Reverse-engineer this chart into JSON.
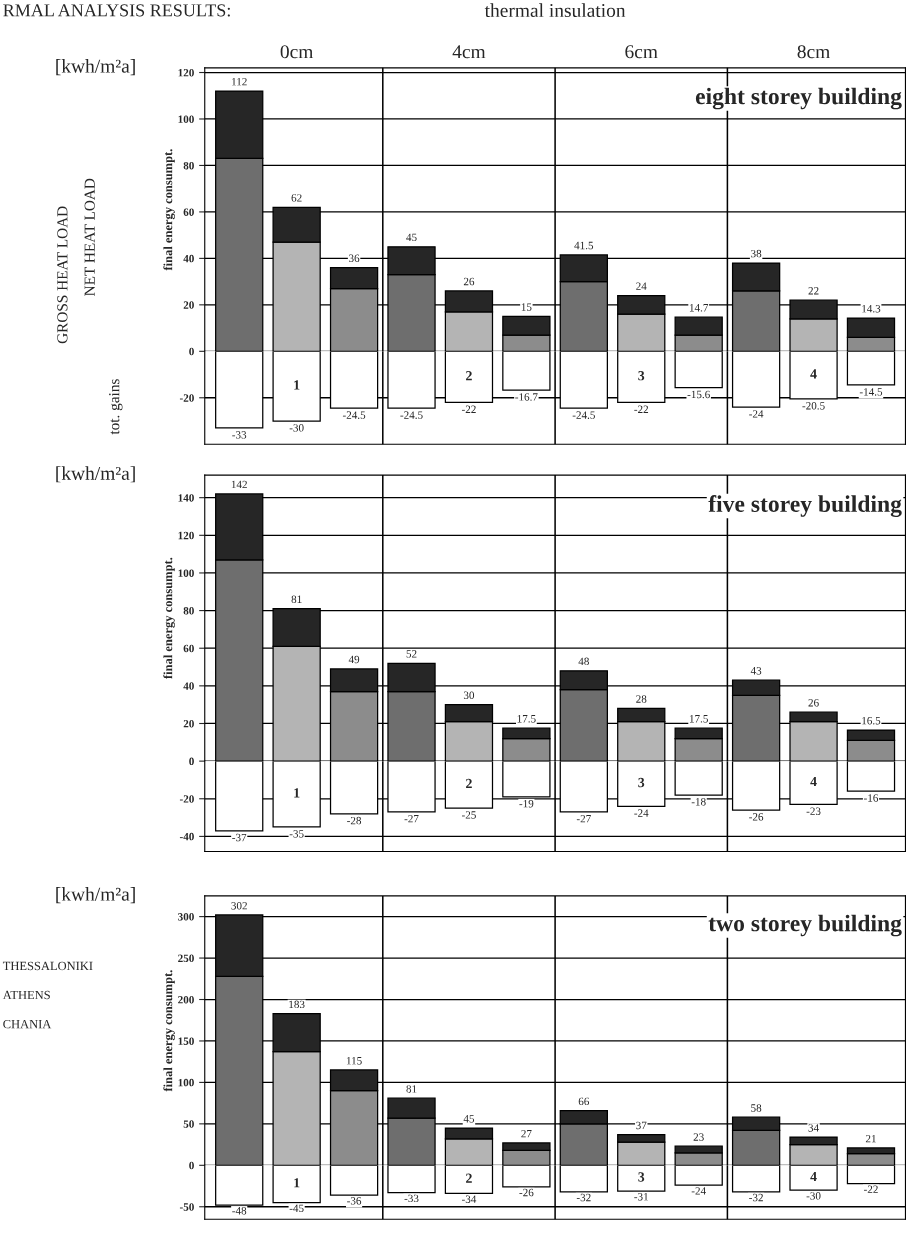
{
  "chart_data": [
    {
      "type": "bar",
      "title": "eight storey building",
      "ylabel": "final energy consumpt.",
      "stacked": true,
      "grid": "y",
      "categories": [
        null,
        null,
        null,
        null,
        null,
        null,
        null,
        null,
        null,
        null,
        null,
        null
      ],
      "ylim": [
        0,
        122
      ],
      "yticks": [
        0,
        20,
        40,
        60,
        80,
        100,
        120
      ],
      "series": [
        {
          "colors": [
            "#6e6e6e",
            "#b4b4b4",
            "#8c8c8c",
            "#6e6e6e",
            "#b4b4b4",
            "#8c8c8c",
            "#6e6e6e",
            "#b4b4b4",
            "#8c8c8c",
            "#6e6e6e",
            "#b4b4b4",
            "#8c8c8c"
          ],
          "values": [
            83,
            47,
            27,
            33,
            17,
            7,
            30,
            16,
            7,
            26,
            14,
            6
          ]
        },
        {
          "color": "#262626",
          "values": [
            29,
            15,
            9,
            12,
            9,
            8,
            11.5,
            8,
            7.7,
            12,
            8,
            8.3
          ]
        }
      ],
      "totals": [
        "112",
        "62",
        "36",
        "45",
        "26",
        "15",
        "41.5",
        "24",
        "14.7",
        "38",
        "22",
        "14.3"
      ],
      "annotations": [
        "RMAL ANALYSIS RESULTS:",
        "thermal insulation",
        "0cm",
        "4cm",
        "6cm",
        "8cm",
        "[kwh/m²a]",
        "GROSS HEAT LOAD",
        "NET HEAT LOAD",
        "tot. gains"
      ]
    },
    {
      "type": "bar",
      "ref_lines": [
        {
          "axis": "y",
          "value": -20,
          "color": "#000000"
        }
      ],
      "categories": [
        null,
        null,
        null,
        null,
        null,
        null,
        null,
        null,
        null,
        null,
        null,
        null
      ],
      "ylim": [
        -40,
        0
      ],
      "yticks": [
        -20
      ],
      "series": [
        {
          "color": "#ffffff",
          "values": [
            -33,
            -30,
            -24.5,
            -24.5,
            -22,
            -16.7,
            -24.5,
            -22,
            -15.6,
            -24,
            -20.5,
            -14.5
          ],
          "value_labels": [
            "-33",
            "-30",
            "-24.5",
            "-24.5",
            "-22",
            "-16.7",
            "-24.5",
            "-22",
            "-15.6",
            "-24",
            "-20.5",
            "-14.5"
          ]
        }
      ],
      "annotations": [
        "1",
        "2",
        "3",
        "4"
      ]
    },
    {
      "type": "bar",
      "title": "five storey building",
      "ylabel": "final energy consumpt.",
      "stacked": true,
      "grid": "y",
      "categories": [
        null,
        null,
        null,
        null,
        null,
        null,
        null,
        null,
        null,
        null,
        null,
        null
      ],
      "ylim": [
        0,
        152
      ],
      "yticks": [
        0,
        20,
        40,
        60,
        80,
        100,
        120,
        140
      ],
      "series": [
        {
          "colors": [
            "#6e6e6e",
            "#b4b4b4",
            "#8c8c8c",
            "#6e6e6e",
            "#b4b4b4",
            "#8c8c8c",
            "#6e6e6e",
            "#b4b4b4",
            "#8c8c8c",
            "#6e6e6e",
            "#b4b4b4",
            "#8c8c8c"
          ],
          "values": [
            107,
            61,
            37,
            37,
            21,
            12,
            38,
            21,
            12,
            35,
            21,
            11
          ]
        },
        {
          "color": "#262626",
          "values": [
            35,
            20,
            12,
            15,
            9,
            5.5,
            10,
            7,
            5.5,
            8,
            5,
            5.5
          ]
        }
      ],
      "totals": [
        "142",
        "81",
        "49",
        "52",
        "30",
        "17.5",
        "48",
        "28",
        "17.5",
        "43",
        "26",
        "16.5"
      ],
      "annotations": [
        "[kwh/m²a]"
      ]
    },
    {
      "type": "bar",
      "grid": "y",
      "categories": [
        null,
        null,
        null,
        null,
        null,
        null,
        null,
        null,
        null,
        null,
        null,
        null
      ],
      "ylim": [
        -48,
        0
      ],
      "yticks": [
        -40,
        -20
      ],
      "series": [
        {
          "color": "#ffffff",
          "values": [
            -37,
            -35,
            -28,
            -27,
            -25,
            -19,
            -27,
            -24,
            -18,
            -26,
            -23,
            -16
          ],
          "value_labels": [
            "-37",
            "-35",
            "-28",
            "-27",
            "-25",
            "-19",
            "-27",
            "-24",
            "-18",
            "-26",
            "-23",
            "-16"
          ]
        }
      ],
      "annotations": [
        "1",
        "2",
        "3",
        "4"
      ]
    },
    {
      "type": "bar",
      "title": "two storey building",
      "ylabel": "final energy consumpt.",
      "stacked": true,
      "grid": "y",
      "categories": [
        null,
        null,
        null,
        null,
        null,
        null,
        null,
        null,
        null,
        null,
        null,
        null
      ],
      "ylim": [
        0,
        325
      ],
      "yticks": [
        0,
        50,
        100,
        150,
        200,
        250,
        300
      ],
      "series": [
        {
          "colors": [
            "#6e6e6e",
            "#b4b4b4",
            "#8c8c8c",
            "#6e6e6e",
            "#b4b4b4",
            "#8c8c8c",
            "#6e6e6e",
            "#b4b4b4",
            "#8c8c8c",
            "#6e6e6e",
            "#b4b4b4",
            "#8c8c8c"
          ],
          "values": [
            228,
            137,
            90,
            57,
            32,
            18,
            50,
            28,
            15,
            42,
            25,
            14
          ]
        },
        {
          "color": "#262626",
          "values": [
            74,
            46,
            25,
            24,
            13,
            9,
            16,
            9,
            8,
            16,
            9,
            7
          ]
        }
      ],
      "totals": [
        "302",
        "183",
        "115",
        "81",
        "45",
        "27",
        "66",
        "37",
        "23",
        "58",
        "34",
        "21"
      ],
      "annotations": [
        "[kwh/m²a]",
        "THESSALONIKI",
        "ATHENS",
        "CHANIA"
      ]
    },
    {
      "type": "bar",
      "ref_lines": [
        {
          "axis": "y",
          "value": -50,
          "color": "#000000"
        }
      ],
      "categories": [
        null,
        null,
        null,
        null,
        null,
        null,
        null,
        null,
        null,
        null,
        null,
        null
      ],
      "ylim": [
        -65,
        0
      ],
      "yticks": [
        -50
      ],
      "series": [
        {
          "color": "#ffffff",
          "values": [
            -48,
            -45,
            -36,
            -33,
            -34,
            -26,
            -32,
            -31,
            -24,
            -32,
            -30,
            -22
          ],
          "value_labels": [
            "-48",
            "-45",
            "-36",
            "-33",
            "-34",
            "-26",
            "-32",
            "-31",
            "-24",
            "-32",
            "-30",
            "-22"
          ]
        }
      ],
      "annotations": [
        "1",
        "2",
        "3",
        "4"
      ]
    }
  ]
}
